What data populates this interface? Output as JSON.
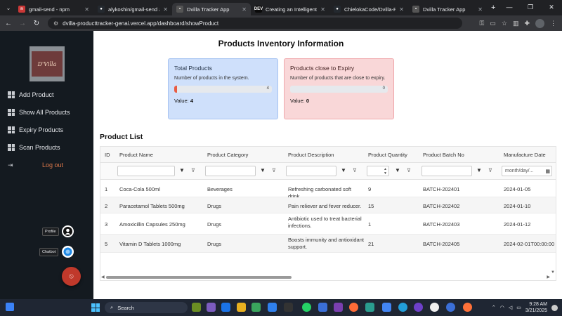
{
  "browser": {
    "tabs": [
      {
        "title": "gmail-send - npm",
        "color": "#cb3837",
        "glyph": "n"
      },
      {
        "title": "alykoshin/gmail-send at 1.8",
        "color": "#24292f",
        "glyph": "●"
      },
      {
        "title": "Dvilla Tracker App",
        "color": "#555555",
        "glyph": "▪",
        "active": true
      },
      {
        "title": "Creating an Intelligent Tas",
        "color": "#0a0a0a",
        "glyph": "DEV"
      },
      {
        "title": "ChielokaCode/Dvilla-Produ",
        "color": "#24292f",
        "glyph": "●"
      },
      {
        "title": "Dvilla Tracker App",
        "color": "#555555",
        "glyph": "▪"
      }
    ],
    "new_tab": "+",
    "url": "dvilla-producttracker-genai.vercel.app/dashboard/showProduct"
  },
  "sidebar": {
    "logo_text": "D'Villa",
    "items": [
      {
        "label": "Add Product"
      },
      {
        "label": "Show All Products"
      },
      {
        "label": "Expiry Products"
      },
      {
        "label": "Scan Products"
      }
    ],
    "logout": "Log out",
    "profile_label": "Profile",
    "chatbot_label": "Chatbot"
  },
  "main": {
    "title": "Products Inventory Information",
    "total_card": {
      "title": "Total Products",
      "description": "Number of products in the system.",
      "bar_value": "4",
      "bar_fraction": 0.03,
      "value_label": "Value:",
      "value": "4"
    },
    "expiry_card": {
      "title": "Products close to Expiry",
      "description": "Number of products that are close to expiry.",
      "bar_value": "0",
      "bar_fraction": 0,
      "value_label": "Value:",
      "value": "0"
    },
    "list_title": "Product List",
    "columns": [
      "ID",
      "Product Name",
      "Product Category",
      "Product Description",
      "Product Quantity",
      "Product Batch No",
      "Manufacture Date"
    ],
    "date_placeholder": "month/day/...",
    "rows": [
      {
        "id": "1",
        "name": "Coca-Cola 500ml",
        "category": "Beverages",
        "description": "Refreshing carbonated soft drink.",
        "quantity": "9",
        "batch": "BATCH-202401",
        "date": "2024-01-05"
      },
      {
        "id": "2",
        "name": "Paracetamol Tablets 500mg",
        "category": "Drugs",
        "description": "Pain reliever and fever reducer.",
        "quantity": "15",
        "batch": "BATCH-202402",
        "date": "2024-01-10"
      },
      {
        "id": "3",
        "name": "Amoxicillin Capsules 250mg",
        "category": "Drugs",
        "description": "Antibiotic used to treat bacterial infections.",
        "quantity": "1",
        "batch": "BATCH-202403",
        "date": "2024-01-12"
      },
      {
        "id": "5",
        "name": "Vitamin D Tablets 1000mg",
        "category": "Drugs",
        "description": "Boosts immunity and antioxidant support.",
        "quantity": "21",
        "batch": "BATCH-202405",
        "date": "2024-02-01T00:00:00"
      }
    ]
  },
  "taskbar": {
    "search": "Search",
    "time": "9:28 AM",
    "date": "3/21/2025"
  }
}
